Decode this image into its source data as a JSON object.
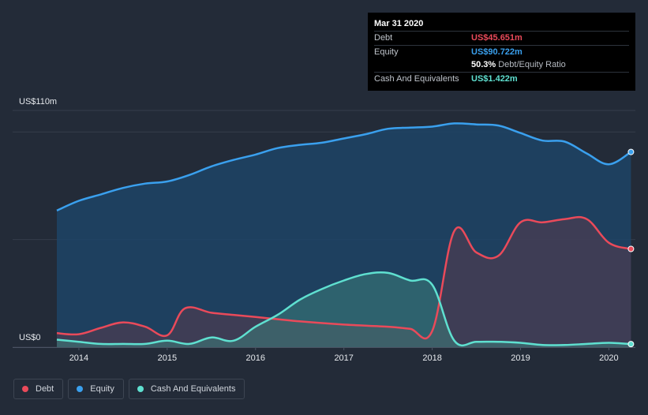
{
  "chart_data": {
    "type": "area",
    "title": "",
    "xlabel": "",
    "ylabel": "",
    "ylim": [
      0,
      110
    ],
    "y_unit_labels": {
      "max": "US$110m",
      "min": "US$0"
    },
    "x_ticks": [
      "2014",
      "2015",
      "2016",
      "2017",
      "2018",
      "2019",
      "2020"
    ],
    "x_range": [
      2013.25,
      2020.3
    ],
    "series": [
      {
        "name": "Equity",
        "color": "#3aa0ee",
        "points": [
          [
            2013.75,
            63.5
          ],
          [
            2014.0,
            68.0
          ],
          [
            2014.25,
            71.0
          ],
          [
            2014.5,
            74.0
          ],
          [
            2014.75,
            76.0
          ],
          [
            2015.0,
            77.0
          ],
          [
            2015.25,
            80.0
          ],
          [
            2015.5,
            84.0
          ],
          [
            2015.75,
            87.0
          ],
          [
            2016.0,
            89.5
          ],
          [
            2016.25,
            92.5
          ],
          [
            2016.5,
            94.0
          ],
          [
            2016.75,
            95.0
          ],
          [
            2017.0,
            97.0
          ],
          [
            2017.25,
            99.0
          ],
          [
            2017.5,
            101.5
          ],
          [
            2017.75,
            102.0
          ],
          [
            2018.0,
            102.5
          ],
          [
            2018.25,
            104.0
          ],
          [
            2018.5,
            103.5
          ],
          [
            2018.75,
            103.0
          ],
          [
            2019.0,
            99.5
          ],
          [
            2019.25,
            96.0
          ],
          [
            2019.5,
            95.5
          ],
          [
            2019.75,
            90.0
          ],
          [
            2020.0,
            85.0
          ],
          [
            2020.25,
            90.722
          ]
        ]
      },
      {
        "name": "Debt",
        "color": "#ea4a5a",
        "points": [
          [
            2013.75,
            6.5
          ],
          [
            2014.0,
            6.0
          ],
          [
            2014.25,
            9.0
          ],
          [
            2014.5,
            11.5
          ],
          [
            2014.75,
            9.5
          ],
          [
            2015.0,
            5.5
          ],
          [
            2015.2,
            18.0
          ],
          [
            2015.5,
            16.0
          ],
          [
            2015.75,
            15.0
          ],
          [
            2016.0,
            14.0
          ],
          [
            2016.5,
            12.0
          ],
          [
            2017.0,
            10.5
          ],
          [
            2017.5,
            9.5
          ],
          [
            2017.75,
            8.5
          ],
          [
            2018.0,
            7.5
          ],
          [
            2018.25,
            54.0
          ],
          [
            2018.5,
            44.0
          ],
          [
            2018.75,
            42.5
          ],
          [
            2019.0,
            58.0
          ],
          [
            2019.25,
            58.0
          ],
          [
            2019.5,
            59.5
          ],
          [
            2019.75,
            59.5
          ],
          [
            2020.0,
            48.5
          ],
          [
            2020.25,
            45.651
          ]
        ]
      },
      {
        "name": "Cash And Equivalents",
        "color": "#5fe0d0",
        "points": [
          [
            2013.75,
            3.5
          ],
          [
            2014.0,
            2.5
          ],
          [
            2014.25,
            1.5
          ],
          [
            2014.5,
            1.5
          ],
          [
            2014.75,
            1.5
          ],
          [
            2015.0,
            3.0
          ],
          [
            2015.25,
            1.5
          ],
          [
            2015.5,
            4.5
          ],
          [
            2015.75,
            3.0
          ],
          [
            2016.0,
            9.5
          ],
          [
            2016.25,
            15.0
          ],
          [
            2016.5,
            22.0
          ],
          [
            2016.75,
            27.0
          ],
          [
            2017.0,
            31.0
          ],
          [
            2017.25,
            34.0
          ],
          [
            2017.5,
            34.5
          ],
          [
            2017.75,
            31.0
          ],
          [
            2018.0,
            29.0
          ],
          [
            2018.25,
            3.0
          ],
          [
            2018.5,
            2.5
          ],
          [
            2018.75,
            2.5
          ],
          [
            2019.0,
            2.0
          ],
          [
            2019.25,
            1.0
          ],
          [
            2019.5,
            1.0
          ],
          [
            2019.75,
            1.5
          ],
          [
            2020.0,
            2.0
          ],
          [
            2020.25,
            1.422
          ]
        ]
      }
    ],
    "legend": [
      "Debt",
      "Equity",
      "Cash And Equivalents"
    ],
    "tooltip": {
      "date": "Mar 31 2020",
      "rows": [
        {
          "label": "Debt",
          "value": "US$45.651m"
        },
        {
          "label": "Equity",
          "value": "US$90.722m"
        },
        {
          "label": "",
          "value": "50.3%",
          "extra": "Debt/Equity Ratio"
        },
        {
          "label": "Cash And Equivalents",
          "value": "US$1.422m"
        }
      ]
    }
  }
}
